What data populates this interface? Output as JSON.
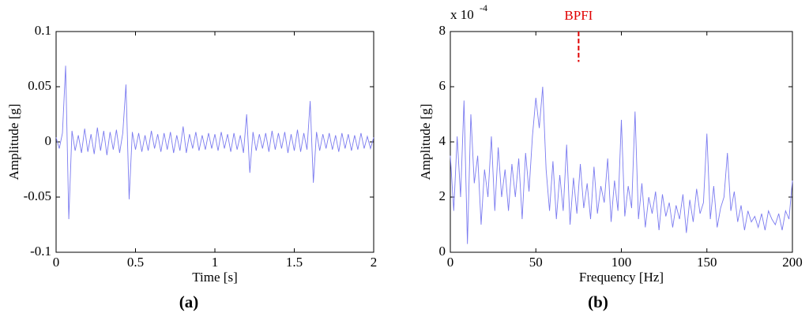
{
  "chart_data": [
    {
      "type": "line",
      "label": "(a)",
      "x_label": "Time [s]",
      "y_label": "Amplitude [g]",
      "xlim": [
        0,
        2
      ],
      "ylim": [
        -0.1,
        0.1
      ],
      "xticks": [
        0,
        0.5,
        1,
        1.5,
        2
      ],
      "yticks": [
        -0.1,
        -0.05,
        0,
        0.05,
        0.1
      ],
      "series": [
        {
          "color": "#7b7bf0",
          "x": [
            0,
            0.02,
            0.04,
            0.06,
            0.08,
            0.1,
            0.12,
            0.14,
            0.16,
            0.18,
            0.2,
            0.22,
            0.24,
            0.26,
            0.28,
            0.3,
            0.32,
            0.34,
            0.36,
            0.38,
            0.4,
            0.42,
            0.44,
            0.46,
            0.48,
            0.5,
            0.52,
            0.54,
            0.56,
            0.58,
            0.6,
            0.62,
            0.64,
            0.66,
            0.68,
            0.7,
            0.72,
            0.74,
            0.76,
            0.78,
            0.8,
            0.82,
            0.84,
            0.86,
            0.88,
            0.9,
            0.92,
            0.94,
            0.96,
            0.98,
            1,
            1.02,
            1.04,
            1.06,
            1.08,
            1.1,
            1.12,
            1.14,
            1.16,
            1.18,
            1.2,
            1.22,
            1.24,
            1.26,
            1.28,
            1.3,
            1.32,
            1.34,
            1.36,
            1.38,
            1.4,
            1.42,
            1.44,
            1.46,
            1.48,
            1.5,
            1.52,
            1.54,
            1.56,
            1.58,
            1.6,
            1.62,
            1.64,
            1.66,
            1.68,
            1.7,
            1.72,
            1.74,
            1.76,
            1.78,
            1.8,
            1.82,
            1.84,
            1.86,
            1.88,
            1.9,
            1.92,
            1.94,
            1.96,
            1.98,
            2
          ],
          "values": [
            0.004,
            -0.006,
            0.008,
            0.069,
            -0.07,
            0.01,
            -0.008,
            0.006,
            -0.01,
            0.012,
            -0.009,
            0.007,
            -0.011,
            0.013,
            -0.008,
            0.01,
            -0.012,
            0.009,
            -0.007,
            0.011,
            -0.01,
            0.008,
            0.052,
            -0.052,
            0.009,
            -0.007,
            0.008,
            -0.009,
            0.006,
            -0.008,
            0.01,
            -0.006,
            0.007,
            -0.009,
            0.008,
            -0.007,
            0.009,
            -0.01,
            0.006,
            -0.008,
            0.014,
            -0.01,
            0.007,
            -0.006,
            0.009,
            -0.008,
            0.006,
            -0.007,
            0.008,
            -0.006,
            0.007,
            -0.008,
            0.009,
            -0.006,
            0.007,
            -0.009,
            0.008,
            -0.007,
            0.006,
            -0.01,
            0.025,
            -0.028,
            0.009,
            -0.008,
            0.007,
            -0.006,
            0.008,
            -0.009,
            0.01,
            -0.007,
            0.008,
            -0.006,
            0.009,
            -0.01,
            0.007,
            -0.008,
            0.011,
            -0.009,
            0.008,
            -0.007,
            0.037,
            -0.037,
            0.009,
            -0.008,
            0.007,
            -0.006,
            0.008,
            -0.007,
            0.006,
            -0.009,
            0.008,
            -0.006,
            0.007,
            -0.008,
            0.006,
            -0.007,
            0.008,
            -0.006,
            0.005,
            -0.006,
            0.004
          ]
        }
      ]
    },
    {
      "type": "line",
      "label": "(b)",
      "x_label": "Frequency [Hz]",
      "y_label": "Amplitude [g]",
      "y_scale_label": "x 10",
      "y_scale_exponent": "-4",
      "xlim": [
        0,
        200
      ],
      "ylim": [
        0,
        8
      ],
      "xticks": [
        0,
        50,
        100,
        150,
        200
      ],
      "yticks": [
        0,
        2,
        4,
        6,
        8
      ],
      "annotation": {
        "text": "BPFI",
        "x": 75,
        "y_top": 8,
        "y_bottom": 6.9,
        "color": "#e00000"
      },
      "series": [
        {
          "color": "#7b7bf0",
          "x": [
            0,
            2,
            4,
            6,
            8,
            10,
            12,
            14,
            16,
            18,
            20,
            22,
            24,
            26,
            28,
            30,
            32,
            34,
            36,
            38,
            40,
            42,
            44,
            46,
            48,
            50,
            52,
            54,
            56,
            58,
            60,
            62,
            64,
            66,
            68,
            70,
            72,
            74,
            76,
            78,
            80,
            82,
            84,
            86,
            88,
            90,
            92,
            94,
            96,
            98,
            100,
            102,
            104,
            106,
            108,
            110,
            112,
            114,
            116,
            118,
            120,
            122,
            124,
            126,
            128,
            130,
            132,
            134,
            136,
            138,
            140,
            142,
            144,
            146,
            148,
            150,
            152,
            154,
            156,
            158,
            160,
            162,
            164,
            166,
            168,
            170,
            172,
            174,
            176,
            178,
            180,
            182,
            184,
            186,
            188,
            190,
            192,
            194,
            196,
            198,
            200
          ],
          "values": [
            3.5,
            1.5,
            4.2,
            2,
            5.5,
            0.3,
            5,
            2.5,
            3.5,
            1,
            3,
            2,
            4.2,
            1.5,
            3.8,
            2,
            3,
            1.5,
            3.2,
            2,
            3.4,
            1.2,
            3.6,
            2.2,
            4.2,
            5.6,
            4.5,
            6,
            3,
            1.5,
            3.3,
            1.2,
            2.8,
            1.5,
            3.9,
            1,
            2.7,
            1.4,
            3.2,
            1.6,
            2.5,
            1.2,
            3.1,
            1.4,
            2.4,
            1.8,
            3.4,
            1.1,
            2.6,
            1.5,
            4.8,
            1.3,
            2.4,
            1.6,
            5.1,
            1.2,
            2.5,
            0.9,
            2,
            1.4,
            2.2,
            0.8,
            2.1,
            1.3,
            1.8,
            0.9,
            1.7,
            1.2,
            2.1,
            0.7,
            1.9,
            1.1,
            2.3,
            1.4,
            1.8,
            4.3,
            1.2,
            2.4,
            0.9,
            1.6,
            2,
            3.6,
            1.5,
            2.2,
            1.1,
            1.7,
            0.8,
            1.5,
            1.1,
            1.3,
            0.9,
            1.4,
            0.8,
            1.5,
            1.2,
            1,
            1.4,
            0.8,
            1.5,
            1.2,
            2.6
          ]
        }
      ]
    }
  ]
}
